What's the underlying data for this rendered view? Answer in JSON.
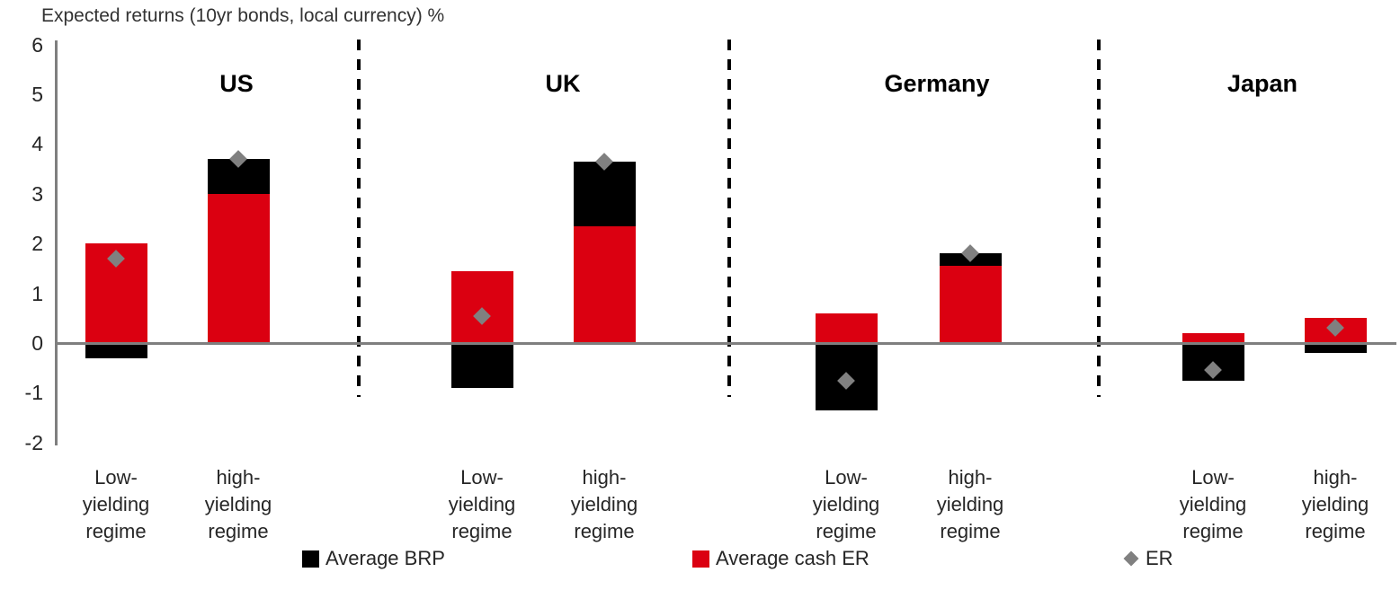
{
  "chart_data": {
    "type": "bar",
    "stacked": true,
    "title": "Expected returns (10yr bonds, local currency) %",
    "groups": [
      "US",
      "UK",
      "Germany",
      "Japan"
    ],
    "categories": [
      "US Low-yielding regime",
      "US high-yielding regime",
      "UK Low-yielding regime",
      "UK high-yielding regime",
      "Germany Low-yielding regime",
      "Germany high-yielding regime",
      "Japan Low-yielding regime",
      "Japan high-yielding regime"
    ],
    "tick_label_lines": [
      [
        "Low-",
        "yielding",
        "regime"
      ],
      [
        "high-",
        "yielding",
        "regime"
      ]
    ],
    "series": [
      {
        "name": "Average BRP",
        "role": "bar-stack",
        "color": "#000000",
        "values": [
          -0.3,
          0.7,
          -0.9,
          1.3,
          -1.35,
          0.25,
          -0.75,
          -0.2
        ]
      },
      {
        "name": "Average cash ER",
        "role": "bar-stack",
        "color": "#db0011",
        "values": [
          2.0,
          3.0,
          1.45,
          2.35,
          0.6,
          1.55,
          0.2,
          0.5
        ]
      },
      {
        "name": "ER",
        "role": "marker",
        "marker": "diamond",
        "color": "#808080",
        "values": [
          1.7,
          3.7,
          0.55,
          3.65,
          -0.75,
          1.8,
          -0.55,
          0.3
        ]
      }
    ],
    "legend": [
      {
        "label": "Average BRP",
        "swatch": "square",
        "color": "#000000"
      },
      {
        "label": "Average cash ER",
        "swatch": "square",
        "color": "#db0011"
      },
      {
        "label": "ER",
        "swatch": "diamond",
        "color": "#808080"
      }
    ],
    "ylim": [
      -2,
      6
    ],
    "yticks": [
      6,
      5,
      4,
      3,
      2,
      1,
      0,
      -1,
      -2
    ],
    "axis_color": "#7f7f7f",
    "separator_style": "dashed-vertical",
    "legend_position": "bottom",
    "grid": false
  }
}
